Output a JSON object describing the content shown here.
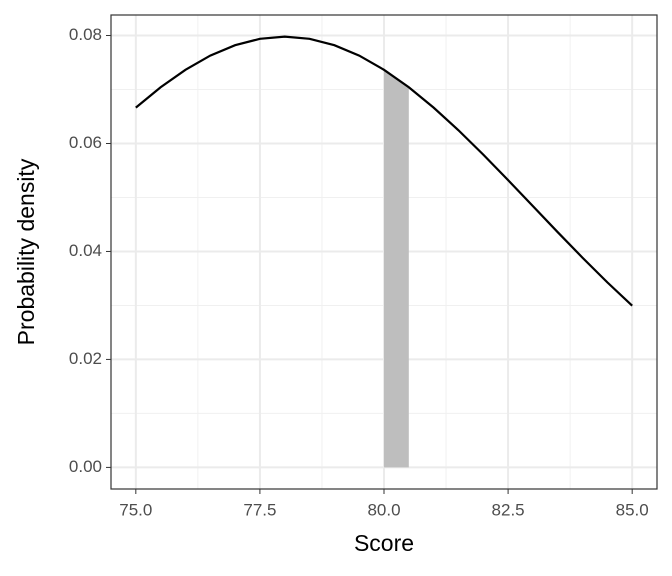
{
  "chart_data": {
    "type": "line",
    "xlabel": "Score",
    "ylabel": "Probability density",
    "series": [
      {
        "type": "area",
        "color": "#bebebe",
        "x": [
          80,
          80.25,
          80.5
        ],
        "values": [
          0.07365,
          0.0721,
          0.07041
        ]
      },
      {
        "type": "line",
        "color": "#000000",
        "x": [
          75,
          75.5,
          76,
          76.5,
          77,
          77.5,
          78,
          78.5,
          79,
          79.5,
          80,
          80.5,
          81,
          81.5,
          82,
          82.5,
          83,
          83.5,
          84,
          84.5,
          85
        ],
        "values": [
          0.06664,
          0.07041,
          0.07365,
          0.07628,
          0.07821,
          0.07939,
          0.07979,
          0.07939,
          0.07821,
          0.07628,
          0.07365,
          0.07041,
          0.06664,
          0.06245,
          0.05794,
          0.05322,
          0.04839,
          0.04357,
          0.03884,
          0.03427,
          0.02995
        ]
      }
    ],
    "xlim": [
      74.5,
      85.5
    ],
    "ylim": [
      -0.004,
      0.0838
    ],
    "xticks": [
      {
        "value": 75,
        "label": "75.0"
      },
      {
        "value": 77.5,
        "label": "77.5"
      },
      {
        "value": 80,
        "label": "80.0"
      },
      {
        "value": 82.5,
        "label": "82.5"
      },
      {
        "value": 85,
        "label": "85.0"
      }
    ],
    "yticks": [
      {
        "value": 0,
        "label": "0.00"
      },
      {
        "value": 0.02,
        "label": "0.02"
      },
      {
        "value": 0.04,
        "label": "0.04"
      },
      {
        "value": 0.06,
        "label": "0.06"
      },
      {
        "value": 0.08,
        "label": "0.08"
      }
    ],
    "x_minor_ticks": [
      76.25,
      78.75,
      81.25,
      83.75
    ],
    "y_minor_ticks": [
      0.01,
      0.03,
      0.05,
      0.07
    ],
    "grid": true
  }
}
